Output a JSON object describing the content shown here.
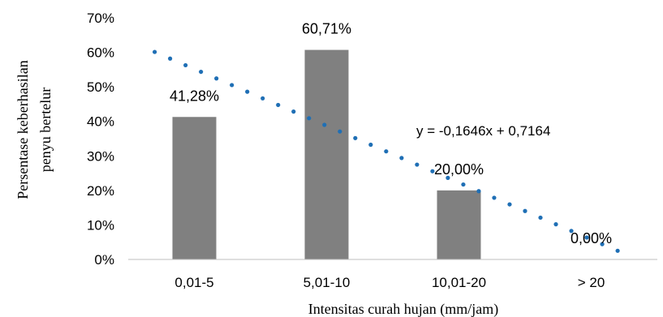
{
  "chart_data": {
    "type": "bar",
    "categories": [
      "0,01-5",
      "5,01-10",
      "10,01-20",
      "> 20"
    ],
    "values": [
      0.4128,
      0.6071,
      0.2,
      0.0
    ],
    "data_labels": [
      "41,28%",
      "60,71%",
      "20,00%",
      "0,00%"
    ],
    "xlabel": "Intensitas curah hujan (mm/jam)",
    "ylabel_lines": [
      "Persentase keberhasilan",
      "penyu bertelur"
    ],
    "ylim": [
      0,
      0.7
    ],
    "yticks": [
      0,
      0.1,
      0.2,
      0.3,
      0.4,
      0.5,
      0.6,
      0.7
    ],
    "ytick_labels": [
      "0%",
      "10%",
      "20%",
      "30%",
      "40%",
      "50%",
      "60%",
      "70%"
    ],
    "grid": false,
    "bar_color": "#808080",
    "trendline": {
      "type": "linear",
      "slope": -0.1646,
      "intercept": 0.7164,
      "equation": "y = -0,1646x + 0,7164",
      "color": "#1f6fb5",
      "style": "dotted"
    }
  }
}
